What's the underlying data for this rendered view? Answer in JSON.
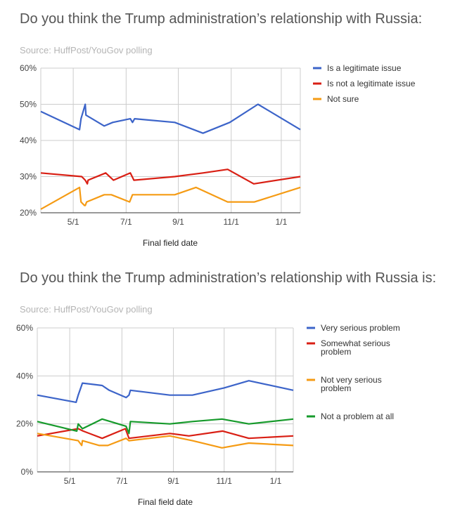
{
  "chart_data": [
    {
      "type": "line",
      "title": "Do you think the Trump administration’s relationship with Russia:",
      "subtitle": "Source: HuffPost/YouGov polling",
      "xlabel": "Final field date",
      "ylabel": "",
      "xticks": [
        "5/1",
        "7/1",
        "9/1",
        "11/1",
        "1/1"
      ],
      "yticks": [
        "20%",
        "30%",
        "40%",
        "50%",
        "60%"
      ],
      "ylim": [
        20,
        60
      ],
      "grid": true,
      "legend_position": "right",
      "series": [
        {
          "name": "Is a legitimate issue",
          "color": "#3c64c9",
          "points": [
            [
              0,
              48
            ],
            [
              55,
              43
            ],
            [
              57,
              46
            ],
            [
              63,
              50
            ],
            [
              64,
              47
            ],
            [
              90,
              44
            ],
            [
              102,
              45
            ],
            [
              127,
              46
            ],
            [
              130,
              45
            ],
            [
              133,
              46
            ],
            [
              190,
              45
            ],
            [
              230,
              42
            ],
            [
              268,
              45
            ],
            [
              308,
              50
            ],
            [
              368,
              43
            ]
          ]
        },
        {
          "name": "Is not a legitimate issue",
          "color": "#d91f14",
          "points": [
            [
              0,
              31
            ],
            [
              58,
              30
            ],
            [
              63,
              29
            ],
            [
              66,
              28
            ],
            [
              67,
              29
            ],
            [
              92,
              31
            ],
            [
              103,
              29
            ],
            [
              127,
              31
            ],
            [
              132,
              29
            ],
            [
              190,
              30
            ],
            [
              230,
              31
            ],
            [
              265,
              32
            ],
            [
              302,
              28
            ],
            [
              368,
              30
            ]
          ]
        },
        {
          "name": "Not sure",
          "color": "#f59b14",
          "points": [
            [
              0,
              21
            ],
            [
              55,
              27
            ],
            [
              57,
              23
            ],
            [
              62,
              22
            ],
            [
              63,
              22
            ],
            [
              65,
              23
            ],
            [
              90,
              25
            ],
            [
              100,
              25
            ],
            [
              126,
              23
            ],
            [
              130,
              25
            ],
            [
              190,
              25
            ],
            [
              220,
              27
            ],
            [
              265,
              23
            ],
            [
              303,
              23
            ],
            [
              368,
              27
            ]
          ]
        }
      ]
    },
    {
      "type": "line",
      "title": "Do you think the Trump administration’s relationship with Russia is:",
      "subtitle": "Source: HuffPost/YouGov polling",
      "xlabel": "Final field date",
      "ylabel": "",
      "xticks": [
        "5/1",
        "7/1",
        "9/1",
        "11/1",
        "1/1"
      ],
      "yticks": [
        "0%",
        "20%",
        "40%",
        "60%"
      ],
      "ylim": [
        0,
        60
      ],
      "grid": true,
      "legend_position": "right",
      "series": [
        {
          "name": "Very serious problem",
          "color": "#3c64c9",
          "points": [
            [
              0,
              32
            ],
            [
              55,
              29
            ],
            [
              58,
              32
            ],
            [
              64,
              37
            ],
            [
              92,
              36
            ],
            [
              102,
              34
            ],
            [
              126,
              31
            ],
            [
              130,
              32
            ],
            [
              132,
              34
            ],
            [
              188,
              32
            ],
            [
              220,
              32
            ],
            [
              265,
              35
            ],
            [
              300,
              38
            ],
            [
              363,
              34
            ]
          ]
        },
        {
          "name": "Somewhat serious problem",
          "color": "#d91f14",
          "points": [
            [
              0,
              15
            ],
            [
              58,
              18
            ],
            [
              65,
              17
            ],
            [
              92,
              14
            ],
            [
              125,
              18
            ],
            [
              130,
              14
            ],
            [
              188,
              16
            ],
            [
              215,
              15
            ],
            [
              263,
              17
            ],
            [
              300,
              14
            ],
            [
              363,
              15
            ]
          ]
        },
        {
          "name": "Not very serious problem",
          "color": "#f59b14",
          "points": [
            [
              0,
              16
            ],
            [
              58,
              13
            ],
            [
              63,
              11
            ],
            [
              64,
              13
            ],
            [
              88,
              11
            ],
            [
              100,
              11
            ],
            [
              126,
              14
            ],
            [
              130,
              13
            ],
            [
              188,
              15
            ],
            [
              220,
              13
            ],
            [
              262,
              10
            ],
            [
              300,
              12
            ],
            [
              363,
              11
            ]
          ]
        },
        {
          "name": "Not a problem at all",
          "color": "#169a2b",
          "points": [
            [
              0,
              21
            ],
            [
              56,
              17
            ],
            [
              58,
              20
            ],
            [
              64,
              18
            ],
            [
              92,
              22
            ],
            [
              126,
              19
            ],
            [
              130,
              16
            ],
            [
              132,
              21
            ],
            [
              188,
              20
            ],
            [
              220,
              21
            ],
            [
              262,
              22
            ],
            [
              300,
              20
            ],
            [
              363,
              22
            ]
          ]
        }
      ]
    }
  ]
}
